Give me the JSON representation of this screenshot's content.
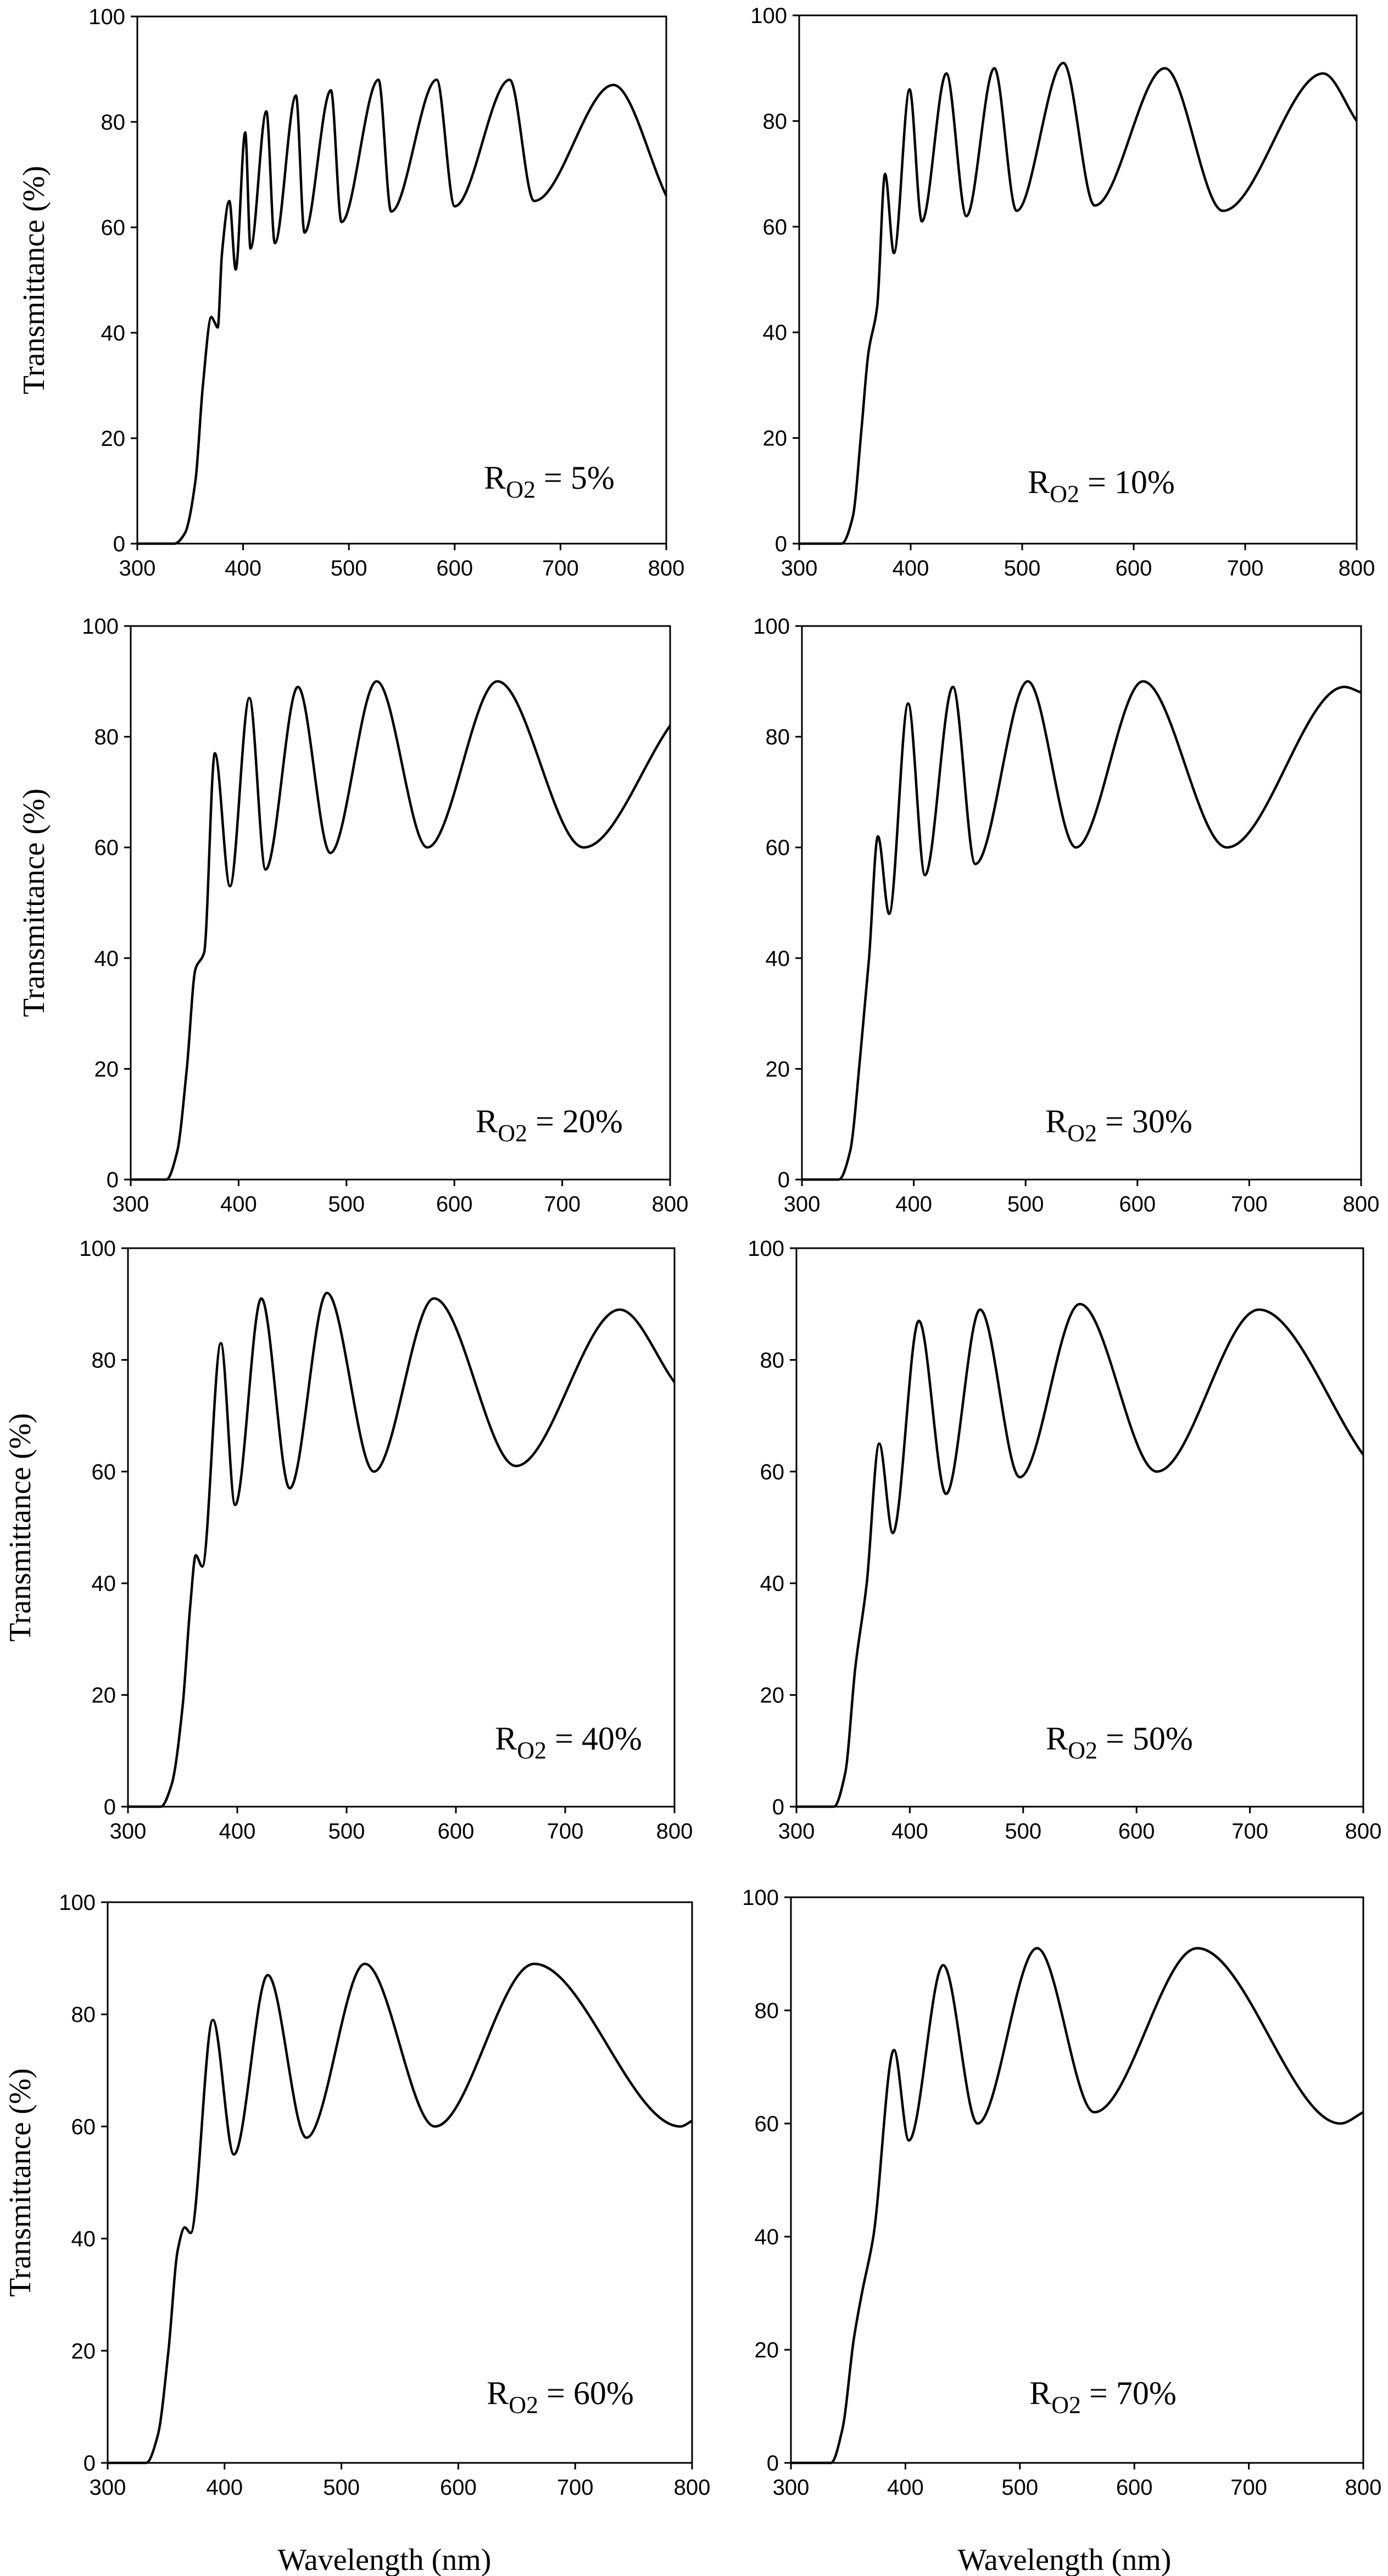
{
  "figure": {
    "y_axis_label": "Transmittance (%)",
    "x_axis_label": "Wavelength (nm)"
  },
  "chart_data": [
    {
      "type": "line",
      "annotation": {
        "prefix": "R",
        "subscript": "O2",
        "suffix": " = 5%"
      },
      "xlim": [
        300,
        800
      ],
      "ylim": [
        0,
        100
      ],
      "x_ticks": [
        300,
        400,
        500,
        600,
        700,
        800
      ],
      "y_ticks": [
        0,
        20,
        40,
        60,
        80,
        100
      ],
      "xlabel": "",
      "ylabel": "Transmittance (%)",
      "series": [
        {
          "name": "R_O2 = 5%",
          "x": [
            300,
            335,
            345,
            355,
            362,
            370,
            373,
            376,
            380,
            387,
            393,
            402,
            407,
            422,
            430,
            450,
            458,
            483,
            493,
            528,
            540,
            583,
            600,
            652,
            675,
            750,
            800
          ],
          "y": [
            0,
            0,
            2,
            12,
            30,
            43,
            42,
            41,
            55,
            65,
            52,
            78,
            56,
            82,
            57,
            85,
            59,
            86,
            61,
            88,
            63,
            88,
            64,
            88,
            65,
            87,
            66
          ]
        }
      ]
    },
    {
      "type": "line",
      "annotation": {
        "prefix": "R",
        "subscript": "O2",
        "suffix": " = 10%"
      },
      "xlim": [
        300,
        800
      ],
      "ylim": [
        0,
        100
      ],
      "x_ticks": [
        300,
        400,
        500,
        600,
        700,
        800
      ],
      "y_ticks": [
        0,
        20,
        40,
        60,
        80,
        100
      ],
      "xlabel": "",
      "ylabel": "",
      "series": [
        {
          "name": "R_O2 = 10%",
          "x": [
            300,
            338,
            348,
            356,
            362,
            370,
            377,
            385,
            399,
            410,
            432,
            450,
            475,
            495,
            537,
            565,
            628,
            680,
            770,
            800
          ],
          "y": [
            0,
            0,
            5,
            22,
            36,
            45,
            70,
            55,
            86,
            61,
            89,
            62,
            90,
            63,
            91,
            64,
            90,
            63,
            89,
            80
          ]
        }
      ]
    },
    {
      "type": "line",
      "annotation": {
        "prefix": "R",
        "subscript": "O2",
        "suffix": " = 20%"
      },
      "xlim": [
        300,
        800
      ],
      "ylim": [
        0,
        100
      ],
      "x_ticks": [
        300,
        400,
        500,
        600,
        700,
        800
      ],
      "y_ticks": [
        0,
        20,
        40,
        60,
        80,
        100
      ],
      "xlabel": "",
      "ylabel": "Transmittance (%)",
      "series": [
        {
          "name": "R_O2 = 20%",
          "x": [
            300,
            333,
            343,
            352,
            360,
            368,
            378,
            392,
            410,
            425,
            455,
            485,
            528,
            575,
            640,
            720,
            800
          ],
          "y": [
            0,
            0,
            5,
            20,
            38,
            41,
            77,
            53,
            87,
            56,
            89,
            59,
            90,
            60,
            90,
            60,
            82
          ]
        }
      ]
    },
    {
      "type": "line",
      "annotation": {
        "prefix": "R",
        "subscript": "O2",
        "suffix": " = 30%"
      },
      "xlim": [
        300,
        800
      ],
      "ylim": [
        0,
        100
      ],
      "x_ticks": [
        300,
        400,
        500,
        600,
        700,
        800
      ],
      "y_ticks": [
        0,
        20,
        40,
        60,
        80,
        100
      ],
      "xlabel": "",
      "ylabel": "",
      "series": [
        {
          "name": "R_O2 = 30%",
          "x": [
            300,
            333,
            343,
            352,
            360,
            368,
            378,
            395,
            410,
            435,
            455,
            502,
            545,
            605,
            680,
            785,
            800
          ],
          "y": [
            0,
            0,
            5,
            22,
            40,
            62,
            48,
            86,
            55,
            89,
            57,
            90,
            60,
            90,
            60,
            89,
            88
          ]
        }
      ]
    },
    {
      "type": "line",
      "annotation": {
        "prefix": "R",
        "subscript": "O2",
        "suffix": " = 40%"
      },
      "xlim": [
        300,
        800
      ],
      "ylim": [
        0,
        100
      ],
      "x_ticks": [
        300,
        400,
        500,
        600,
        700,
        800
      ],
      "y_ticks": [
        0,
        20,
        40,
        60,
        80,
        100
      ],
      "xlabel": "",
      "ylabel": "Transmittance (%)",
      "series": [
        {
          "name": "R_O2 = 40%",
          "x": [
            300,
            330,
            340,
            350,
            357,
            362,
            368,
            385,
            398,
            422,
            448,
            482,
            525,
            580,
            655,
            750,
            800
          ],
          "y": [
            0,
            0,
            4,
            18,
            36,
            45,
            43,
            83,
            54,
            91,
            57,
            92,
            60,
            91,
            61,
            89,
            76
          ]
        }
      ]
    },
    {
      "type": "line",
      "annotation": {
        "prefix": "R",
        "subscript": "O2",
        "suffix": " = 50%"
      },
      "xlim": [
        300,
        800
      ],
      "ylim": [
        0,
        100
      ],
      "x_ticks": [
        300,
        400,
        500,
        600,
        700,
        800
      ],
      "y_ticks": [
        0,
        20,
        40,
        60,
        80,
        100
      ],
      "xlabel": "",
      "ylabel": "",
      "series": [
        {
          "name": "R_O2 = 50%",
          "x": [
            300,
            333,
            343,
            352,
            362,
            373,
            385,
            408,
            432,
            462,
            497,
            550,
            618,
            708,
            800
          ],
          "y": [
            0,
            0,
            6,
            25,
            40,
            65,
            49,
            87,
            56,
            89,
            59,
            90,
            60,
            89,
            63
          ]
        }
      ]
    },
    {
      "type": "line",
      "annotation": {
        "prefix": "R",
        "subscript": "O2",
        "suffix": " = 60%"
      },
      "xlim": [
        300,
        800
      ],
      "ylim": [
        0,
        100
      ],
      "x_ticks": [
        300,
        400,
        500,
        600,
        700,
        800
      ],
      "y_ticks": [
        0,
        20,
        40,
        60,
        80,
        100
      ],
      "xlabel": "",
      "ylabel": "Transmittance (%)",
      "series": [
        {
          "name": "R_O2 = 60%",
          "x": [
            300,
            333,
            343,
            352,
            360,
            366,
            371,
            390,
            408,
            437,
            470,
            520,
            580,
            665,
            790,
            800
          ],
          "y": [
            0,
            0,
            5,
            20,
            38,
            42,
            41,
            79,
            55,
            87,
            58,
            89,
            60,
            89,
            60,
            61
          ]
        }
      ]
    },
    {
      "type": "line",
      "annotation": {
        "prefix": "R",
        "subscript": "O2",
        "suffix": " = 70%"
      },
      "xlim": [
        300,
        800
      ],
      "ylim": [
        0,
        100
      ],
      "x_ticks": [
        300,
        400,
        500,
        600,
        700,
        800
      ],
      "y_ticks": [
        0,
        20,
        40,
        60,
        80,
        100
      ],
      "xlabel": "",
      "ylabel": "",
      "series": [
        {
          "name": "R_O2 = 70%",
          "x": [
            300,
            335,
            345,
            355,
            362,
            372,
            390,
            403,
            433,
            463,
            515,
            565,
            655,
            780,
            800
          ],
          "y": [
            0,
            0,
            6,
            22,
            30,
            40,
            73,
            57,
            88,
            60,
            91,
            62,
            91,
            60,
            62
          ]
        }
      ]
    }
  ]
}
